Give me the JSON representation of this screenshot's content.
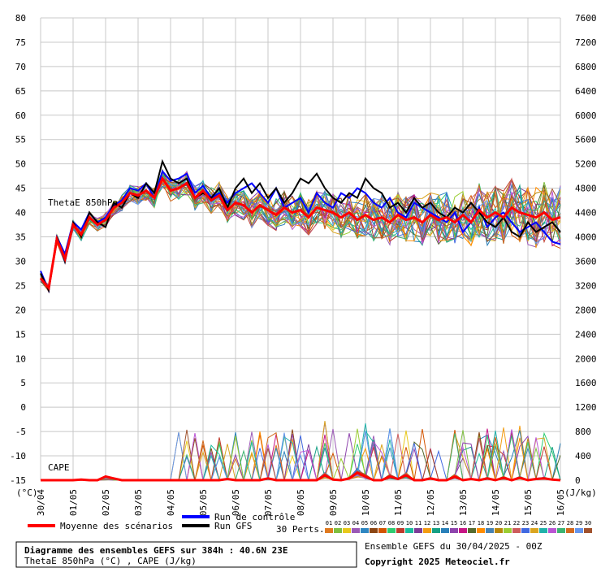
{
  "chart_data": {
    "type": "line",
    "x_dates": [
      "30/04",
      "01/05",
      "02/05",
      "03/05",
      "04/05",
      "05/05",
      "06/05",
      "07/05",
      "08/05",
      "09/05",
      "10/05",
      "11/05",
      "12/05",
      "13/05",
      "14/05",
      "15/05",
      "16/05"
    ],
    "y_left": {
      "unit_label": "(°C)",
      "ticks": [
        80,
        75,
        70,
        65,
        60,
        55,
        50,
        45,
        40,
        35,
        30,
        25,
        20,
        15,
        10,
        5,
        0,
        -5,
        -10,
        -15
      ],
      "ylim": [
        -15,
        80
      ]
    },
    "y_right": {
      "unit_label": "(J/kg)",
      "ticks": [
        7600,
        7200,
        6800,
        6400,
        6000,
        5600,
        5200,
        4800,
        4400,
        4000,
        3600,
        3200,
        2800,
        2400,
        2000,
        1600,
        1200,
        800,
        400,
        0
      ],
      "ylim": [
        0,
        7600
      ]
    },
    "series_labels": {
      "thetae": "ThetaE 850hPa",
      "cape": "CAPE"
    },
    "mean_thetae": [
      26.5,
      24.5,
      34.5,
      30.5,
      37.5,
      35.5,
      39.0,
      37.5,
      38.5,
      41.0,
      42.0,
      44.0,
      43.5,
      44.5,
      43.0,
      47.0,
      44.5,
      45.0,
      46.0,
      43.0,
      44.5,
      42.5,
      43.5,
      40.5,
      42.0,
      41.5,
      40.0,
      41.5,
      40.5,
      39.5,
      41.0,
      40.0,
      40.5,
      39.0,
      41.0,
      40.5,
      40.0,
      39.0,
      40.0,
      38.5,
      39.5,
      38.5,
      39.0,
      38.0,
      39.5,
      38.5,
      39.0,
      38.0,
      39.5,
      38.5,
      39.0,
      38.0,
      39.5,
      38.0,
      40.5,
      39.0,
      40.0,
      39.0,
      41.0,
      40.0,
      39.5,
      39.0,
      40.0,
      38.5,
      39.0
    ],
    "control_thetae": [
      28.0,
      24.0,
      35.0,
      31.5,
      38.0,
      36.5,
      40.0,
      38.0,
      39.0,
      41.5,
      42.5,
      45.0,
      44.5,
      46.0,
      43.0,
      48.5,
      46.5,
      47.0,
      48.0,
      44.0,
      45.5,
      43.0,
      44.0,
      42.0,
      44.0,
      45.0,
      46.0,
      44.0,
      42.0,
      45.0,
      41.0,
      42.0,
      43.0,
      40.0,
      44.0,
      42.0,
      41.0,
      44.0,
      43.0,
      45.0,
      44.0,
      42.0,
      41.0,
      43.0,
      40.0,
      39.0,
      42.0,
      41.0,
      40.0,
      39.0,
      38.0,
      40.0,
      36.0,
      38.0,
      41.0,
      37.0,
      39.0,
      40.0,
      38.0,
      36.0,
      37.0,
      38.0,
      36.0,
      34.0,
      33.5
    ],
    "gfs_thetae": [
      27.5,
      24.0,
      35.0,
      30.0,
      38.0,
      35.0,
      40.0,
      38.0,
      37.0,
      42.0,
      41.0,
      44.0,
      43.0,
      46.0,
      44.0,
      50.5,
      47.0,
      46.0,
      47.0,
      43.0,
      44.0,
      43.0,
      45.0,
      41.0,
      45.0,
      47.0,
      44.0,
      46.0,
      43.0,
      45.0,
      42.0,
      44.0,
      47.0,
      46.0,
      48.0,
      45.0,
      43.0,
      42.0,
      44.0,
      43.0,
      47.0,
      45.0,
      44.0,
      41.0,
      42.0,
      40.0,
      43.0,
      41.0,
      42.0,
      40.0,
      39.0,
      41.0,
      40.0,
      42.0,
      40.0,
      38.0,
      37.0,
      39.0,
      36.0,
      35.0,
      38.0,
      36.0,
      37.0,
      38.0,
      36.0
    ],
    "mean_cape": [
      0,
      0,
      0,
      0,
      0,
      10,
      0,
      0,
      60,
      30,
      0,
      0,
      0,
      0,
      0,
      0,
      0,
      0,
      0,
      0,
      0,
      0,
      0,
      20,
      0,
      0,
      0,
      0,
      30,
      0,
      0,
      0,
      0,
      0,
      0,
      80,
      10,
      0,
      30,
      120,
      60,
      0,
      0,
      60,
      20,
      80,
      0,
      0,
      30,
      0,
      0,
      60,
      0,
      20,
      0,
      30,
      0,
      40,
      0,
      40,
      0,
      20,
      30,
      10,
      0
    ],
    "legend": {
      "mean": "Moyenne des scénarios",
      "control": "Run de contrôle",
      "gfs": "Run GFS",
      "perts": "30 Perts.",
      "member_numbers": [
        "01",
        "02",
        "03",
        "04",
        "05",
        "06",
        "07",
        "08",
        "09",
        "10",
        "11",
        "12",
        "13",
        "14",
        "15",
        "16",
        "17",
        "18",
        "19",
        "20",
        "21",
        "22",
        "23",
        "24",
        "25",
        "26",
        "27",
        "28",
        "29",
        "30"
      ]
    },
    "member_colors": [
      "#e07a1f",
      "#7fbf3f",
      "#e8c81a",
      "#9b59b6",
      "#2e86c1",
      "#8b4513",
      "#d35400",
      "#2ecc71",
      "#c0392b",
      "#1abc9c",
      "#7d3c98",
      "#f39c12",
      "#16a085",
      "#2980b9",
      "#8e44ad",
      "#c71585",
      "#556b2f",
      "#ff8c00",
      "#4682b4",
      "#b8860b",
      "#9acd32",
      "#cd5c5c",
      "#4169e1",
      "#daa520",
      "#20b2aa",
      "#ba55d3",
      "#3cb371",
      "#d2691e",
      "#6495ed",
      "#a0522d"
    ]
  },
  "footer": {
    "title": "Diagramme des ensembles GEFS sur 384h : 40.6N 23E",
    "subtitle": "ThetaE 850hPa (°C) , CAPE (J/kg)",
    "run_info": "Ensemble GEFS du 30/04/2025 - 00Z",
    "copyright": "Copyright 2025 Meteociel.fr"
  },
  "colors": {
    "mean": "#ff0000",
    "control": "#0000ff",
    "gfs": "#000000",
    "grid": "#c8c8c8"
  }
}
